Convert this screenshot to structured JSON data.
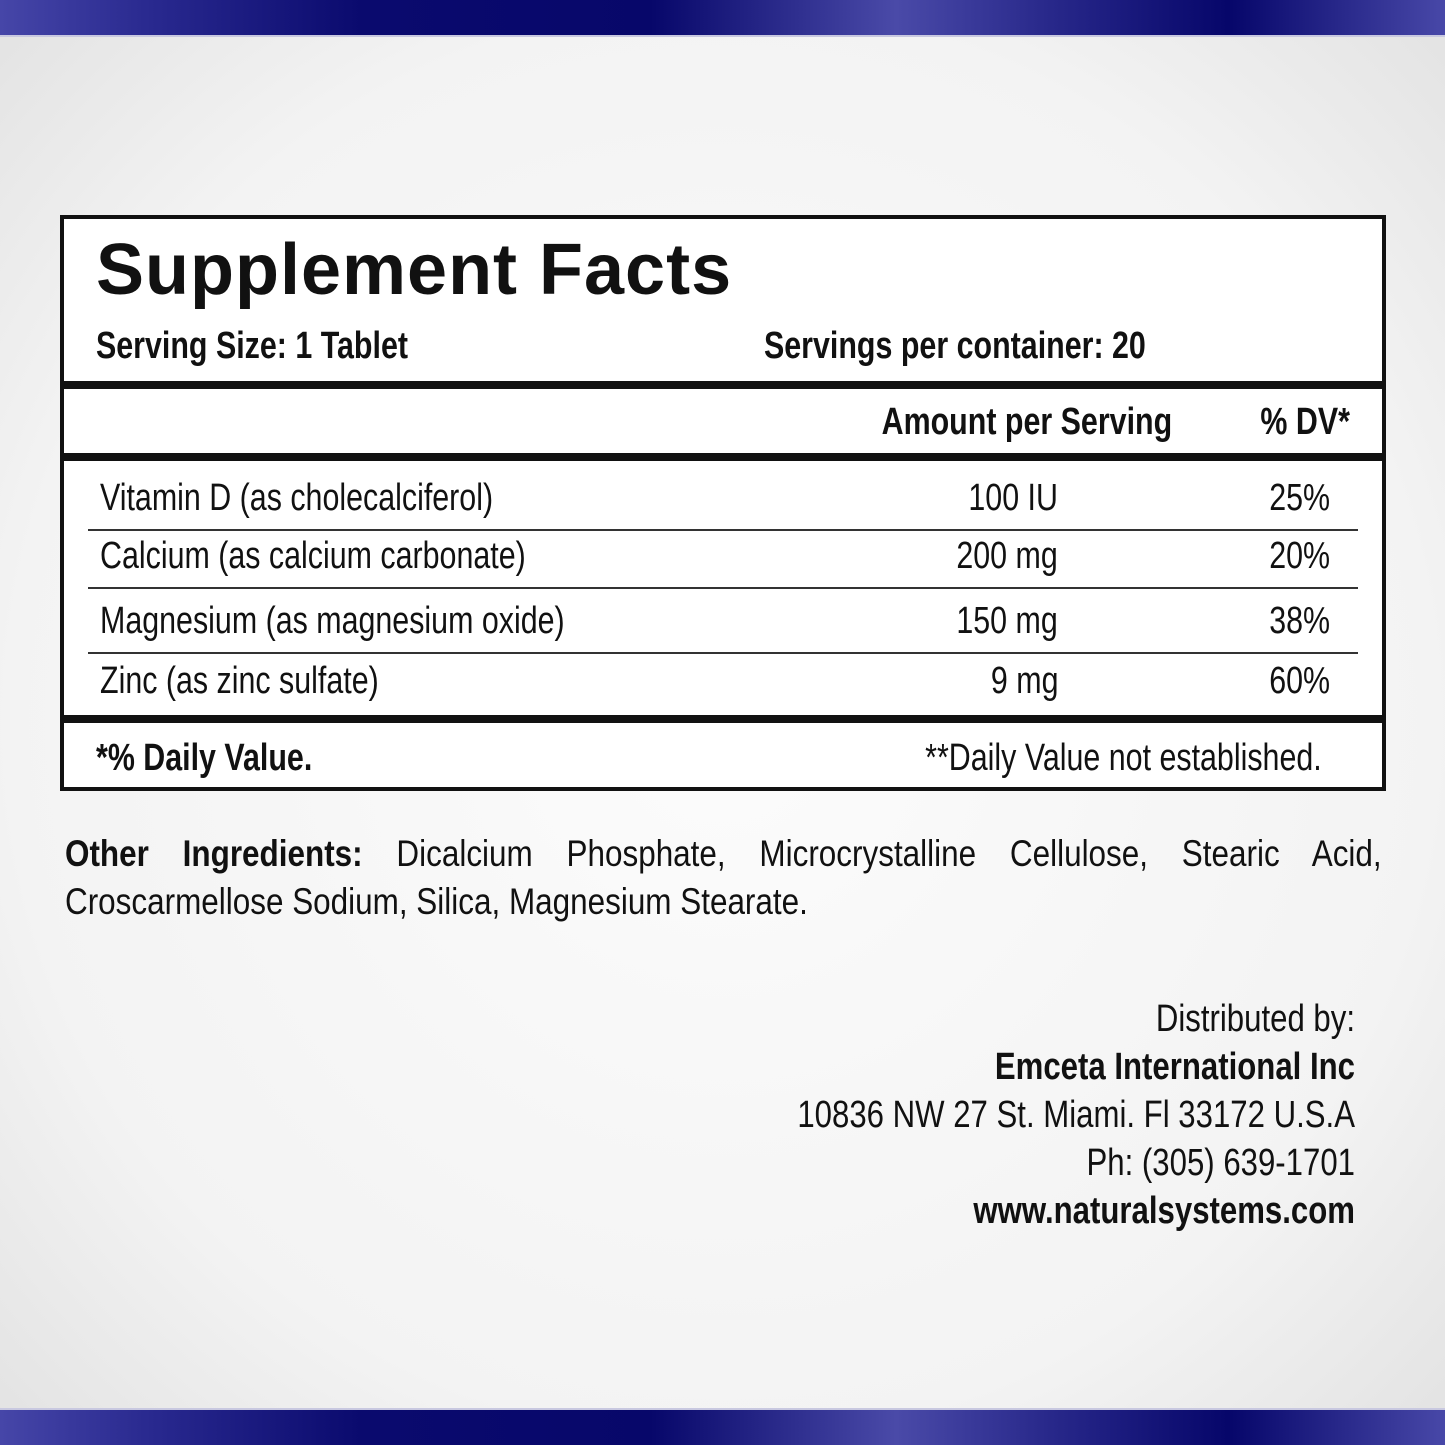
{
  "colors": {
    "band": "#0a0a6e",
    "text": "#111111"
  },
  "label": {
    "title": "Supplement Facts",
    "serving_size": "Serving Size: 1 Tablet",
    "servings_per_container": "Servings per container: 20",
    "header": {
      "amount": "Amount per Serving",
      "dv": "% DV*"
    },
    "rows": [
      {
        "name": "Vitamin D (as cholecalciferol)",
        "amount": "100 IU",
        "dv": "25%"
      },
      {
        "name": "Calcium (as calcium carbonate)",
        "amount": "200 mg",
        "dv": "20%"
      },
      {
        "name": "Magnesium (as magnesium oxide)",
        "amount": "150 mg",
        "dv": "38%"
      },
      {
        "name": "Zinc (as zinc sulfate)",
        "amount": "9 mg",
        "dv": "60%"
      }
    ],
    "footnote_left": "*% Daily Value.",
    "footnote_right": "**Daily Value not established."
  },
  "other_ingredients": {
    "label": "Other Ingredients:",
    "text": " Dicalcium Phosphate, Microcrystalline Cellulose, Stearic Acid, Croscarmellose Sodium, Silica, Magnesium  Stearate."
  },
  "distributor": {
    "label": "Distributed by:",
    "company": "Emceta International Inc",
    "address": "10836 NW 27 St. Miami. Fl 33172 U.S.A",
    "phone": "Ph: (305) 639-1701",
    "website": "www.naturalsystems.com"
  }
}
